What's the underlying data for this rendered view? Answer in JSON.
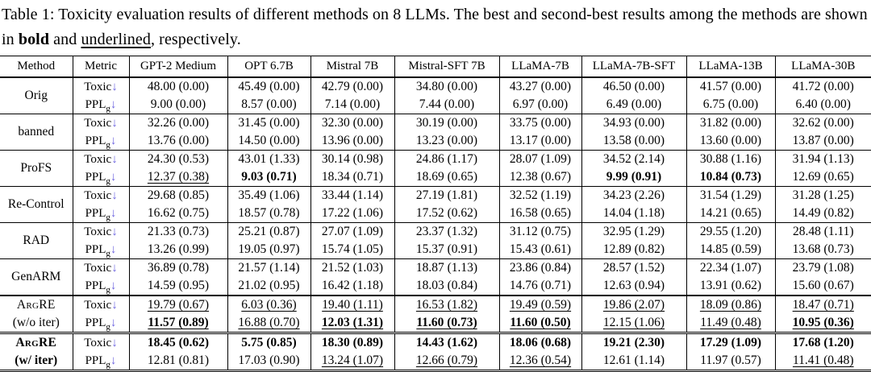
{
  "accent": {
    "arrow_color": "#6f66e0"
  },
  "caption": {
    "text1": "Table 1: Toxicity evaluation results of different methods on 8 LLMs. The best and second-best results among the methods are shown in ",
    "bold_word": "bold",
    "text2": " and ",
    "underline_word": "underlined",
    "text3": ", respectively."
  },
  "table": {
    "headers": [
      "Method",
      "Metric",
      "GPT-2 Medium",
      "OPT 6.7B",
      "Mistral 7B",
      "Mistral-SFT 7B",
      "LLaMA-7B",
      "LLaMA-7B-SFT",
      "LLaMA-13B",
      "LLaMA-30B"
    ],
    "metrics": {
      "toxic": {
        "name": "Toxic",
        "sub": "",
        "arrow": "↓"
      },
      "ppl": {
        "name": "PPL",
        "sub": "g",
        "arrow": "↓"
      }
    },
    "rows": [
      {
        "method": [
          "Orig",
          ""
        ],
        "sc": false,
        "bold": false,
        "toxic": [
          "48.00 (0.00)",
          "45.49 (0.00)",
          "42.79 (0.00)",
          "34.80 (0.00)",
          "43.27 (0.00)",
          "46.50 (0.00)",
          "41.57 (0.00)",
          "41.72 (0.00)"
        ],
        "ppl": [
          "9.00 (0.00)",
          "8.57 (0.00)",
          "7.14 (0.00)",
          "7.44 (0.00)",
          "6.97 (0.00)",
          "6.49 (0.00)",
          "6.75 (0.00)",
          "6.40 (0.00)"
        ]
      },
      {
        "method": [
          "banned",
          ""
        ],
        "sc": false,
        "bold": false,
        "toxic": [
          "32.26 (0.00)",
          "31.45 (0.00)",
          "32.30 (0.00)",
          "30.19 (0.00)",
          "33.75 (0.00)",
          "34.93 (0.00)",
          "31.82 (0.00)",
          "32.62 (0.00)"
        ],
        "ppl": [
          "13.76 (0.00)",
          "14.50 (0.00)",
          "13.96 (0.00)",
          "13.23 (0.00)",
          "13.17 (0.00)",
          "13.58 (0.00)",
          "13.60 (0.00)",
          "13.87 (0.00)"
        ]
      },
      {
        "method": [
          "ProFS",
          ""
        ],
        "sc": false,
        "bold": false,
        "toxic": [
          "24.30 (0.53)",
          "43.01 (1.33)",
          "30.14 (0.98)",
          "24.86 (1.17)",
          "28.07 (1.09)",
          "34.52 (2.14)",
          "30.88 (1.16)",
          "31.94 (1.13)"
        ],
        "ppl": [
          "12.37 (0.38)",
          "9.03 (0.71)",
          "18.34 (0.71)",
          "18.69 (0.65)",
          "12.38 (0.67)",
          "9.99 (0.91)",
          "10.84 (0.73)",
          "12.69 (0.65)"
        ],
        "ppl_s": [
          "u",
          "b",
          "",
          "",
          "",
          "b",
          "b",
          ""
        ]
      },
      {
        "method": [
          "Re-Control",
          ""
        ],
        "sc": false,
        "bold": false,
        "toxic": [
          "29.68 (0.85)",
          "35.49 (1.06)",
          "33.44 (1.14)",
          "27.19 (1.81)",
          "32.52 (1.19)",
          "34.23 (2.26)",
          "31.54 (1.29)",
          "31.28 (1.25)"
        ],
        "ppl": [
          "16.62 (0.75)",
          "18.57 (0.78)",
          "17.22 (1.06)",
          "17.52 (0.62)",
          "16.58 (0.65)",
          "14.04 (1.18)",
          "14.21 (0.65)",
          "14.49 (0.82)"
        ]
      },
      {
        "method": [
          "RAD",
          ""
        ],
        "sc": false,
        "bold": false,
        "toxic": [
          "21.33 (0.73)",
          "25.21 (0.87)",
          "27.07 (1.09)",
          "23.37 (1.32)",
          "31.12 (0.75)",
          "32.95 (1.29)",
          "29.55 (1.20)",
          "28.48 (1.11)"
        ],
        "ppl": [
          "13.26 (0.99)",
          "19.05 (0.97)",
          "15.74 (1.05)",
          "15.37 (0.91)",
          "15.43 (0.61)",
          "12.89 (0.82)",
          "14.85 (0.59)",
          "13.68 (0.73)"
        ]
      },
      {
        "method": [
          "GenARM",
          ""
        ],
        "sc": false,
        "bold": false,
        "toxic": [
          "36.89 (0.78)",
          "21.57 (1.14)",
          "21.52 (1.03)",
          "18.87 (1.13)",
          "23.86 (0.84)",
          "28.57 (1.52)",
          "22.34 (1.07)",
          "23.79 (1.08)"
        ],
        "ppl": [
          "14.59 (0.95)",
          "21.02 (0.95)",
          "16.42 (1.18)",
          "18.03 (0.84)",
          "14.76 (0.71)",
          "12.63 (0.94)",
          "13.91 (0.62)",
          "15.60 (0.67)"
        ]
      },
      {
        "method": [
          "ArgRE",
          "(w/o iter)"
        ],
        "sc": true,
        "bold": false,
        "toxic": [
          "19.79 (0.67)",
          "6.03 (0.36)",
          "19.40 (1.11)",
          "16.53 (1.82)",
          "19.49 (0.59)",
          "19.86 (2.07)",
          "18.09 (0.86)",
          "18.47 (0.71)"
        ],
        "toxic_s": [
          "u",
          "u",
          "u",
          "u",
          "u",
          "u",
          "u",
          "u"
        ],
        "ppl": [
          "11.57 (0.89)",
          "16.88 (0.70)",
          "12.03 (1.31)",
          "11.60 (0.73)",
          "11.60 (0.50)",
          "12.15 (1.06)",
          "11.49 (0.48)",
          "10.95 (0.36)"
        ],
        "ppl_s": [
          "bu",
          "u",
          "bu",
          "bu",
          "bu",
          "u",
          "u",
          "bu"
        ]
      },
      {
        "method": [
          "ArgRE",
          "(w/ iter)"
        ],
        "sc": true,
        "bold": true,
        "toxic": [
          "18.45 (0.62)",
          "5.75 (0.85)",
          "18.30 (0.89)",
          "14.43 (1.62)",
          "18.06 (0.68)",
          "19.21 (2.30)",
          "17.29 (1.09)",
          "17.68 (1.20)"
        ],
        "toxic_s": [
          "b",
          "b",
          "b",
          "b",
          "b",
          "b",
          "b",
          "b"
        ],
        "ppl": [
          "12.81 (0.81)",
          "17.03 (0.90)",
          "13.24 (1.07)",
          "12.66 (0.79)",
          "12.36 (0.54)",
          "12.61 (1.14)",
          "11.97 (0.57)",
          "11.41 (0.48)"
        ],
        "ppl_s": [
          "",
          "",
          "u",
          "u",
          "u",
          "",
          "",
          "u"
        ]
      }
    ]
  }
}
